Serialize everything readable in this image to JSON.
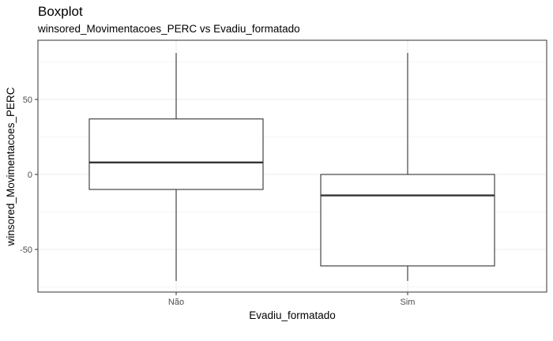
{
  "chart_data": {
    "type": "boxplot",
    "title": "Boxplot",
    "subtitle": "winsored_Movimentacoes_PERC vs Evadiu_formatado",
    "xlabel": "Evadiu_formatado",
    "ylabel": "winsored_Movimentacoes_PERC",
    "ylim": [
      -78,
      85
    ],
    "yticks": [
      -50,
      0,
      50
    ],
    "grid": true,
    "categories": [
      "Não",
      "Sim"
    ],
    "boxes": [
      {
        "category": "Não",
        "whisker_low": -71,
        "q1": -10,
        "median": 8,
        "q3": 37,
        "whisker_high": 81
      },
      {
        "category": "Sim",
        "whisker_low": -71,
        "q1": -61,
        "median": -14,
        "q3": 0,
        "whisker_high": 81
      }
    ]
  },
  "colors": {
    "panel_border": "#333333",
    "grid": "#ebebeb",
    "box_line": "#333333",
    "median_line": "#333333",
    "box_fill": "#ffffff"
  }
}
